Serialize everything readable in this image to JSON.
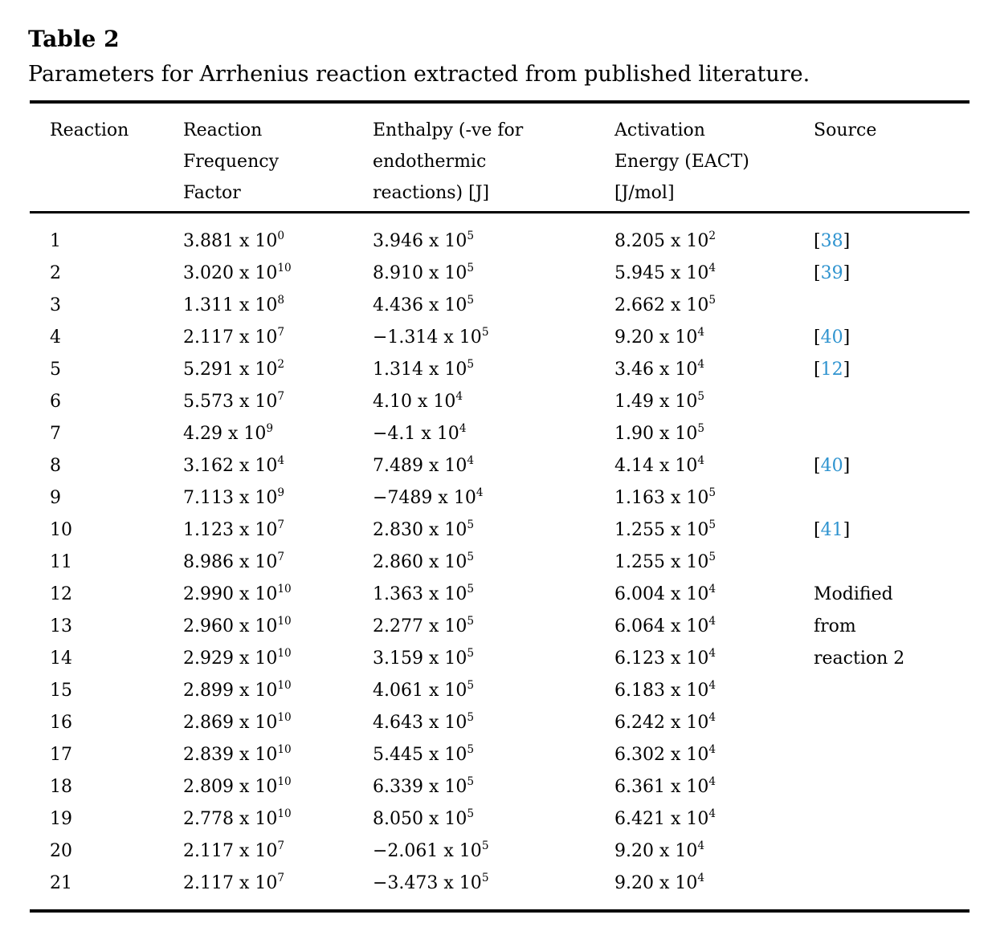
{
  "title": "Table 2",
  "caption": "Parameters for Arrhenius reaction extracted from published literature.",
  "colors": {
    "citation_blue": "#2e93cf",
    "text": "#000000",
    "rule": "#000000",
    "background": "#ffffff"
  },
  "header": {
    "columns": [
      {
        "id": "reaction",
        "lines": [
          "Reaction"
        ]
      },
      {
        "id": "frequency",
        "lines": [
          "Reaction",
          "Frequency",
          "Factor"
        ]
      },
      {
        "id": "enthalpy",
        "lines": [
          "Enthalpy (-ve for",
          "endothermic",
          "reactions) [J]"
        ]
      },
      {
        "id": "activation",
        "lines": [
          "Activation",
          "Energy (EACT)",
          "[J/mol]"
        ]
      },
      {
        "id": "source",
        "lines": [
          "Source"
        ]
      }
    ]
  },
  "rows": [
    {
      "reaction": "1",
      "freq": {
        "m": "3.881 x 10",
        "e": "0"
      },
      "enthalpy": {
        "m": "3.946 x 10",
        "e": "5"
      },
      "eact": {
        "m": "8.205 x 10",
        "e": "2"
      },
      "source": {
        "kind": "citation",
        "num": "38"
      }
    },
    {
      "reaction": "2",
      "freq": {
        "m": "3.020 x 10",
        "e": "10"
      },
      "enthalpy": {
        "m": "8.910 x 10",
        "e": "5"
      },
      "eact": {
        "m": "5.945 x 10",
        "e": "4"
      },
      "source": {
        "kind": "citation",
        "num": "39"
      }
    },
    {
      "reaction": "3",
      "freq": {
        "m": "1.311 x 10",
        "e": "8"
      },
      "enthalpy": {
        "m": "4.436 x 10",
        "e": "5"
      },
      "eact": {
        "m": "2.662 x 10",
        "e": "5"
      },
      "source": {
        "kind": "none"
      }
    },
    {
      "reaction": "4",
      "freq": {
        "m": "2.117 x 10",
        "e": "7"
      },
      "enthalpy": {
        "m": "−1.314 x 10",
        "e": "5"
      },
      "eact": {
        "m": "9.20 x 10",
        "e": "4"
      },
      "source": {
        "kind": "citation",
        "num": "40"
      }
    },
    {
      "reaction": "5",
      "freq": {
        "m": "5.291 x 10",
        "e": "2"
      },
      "enthalpy": {
        "m": "1.314 x 10",
        "e": "5"
      },
      "eact": {
        "m": "3.46 x 10",
        "e": "4"
      },
      "source": {
        "kind": "citation",
        "num": "12"
      }
    },
    {
      "reaction": "6",
      "freq": {
        "m": "5.573 x 10",
        "e": "7"
      },
      "enthalpy": {
        "m": "4.10 x 10",
        "e": "4"
      },
      "eact": {
        "m": "1.49 x 10",
        "e": "5"
      },
      "source": {
        "kind": "none"
      }
    },
    {
      "reaction": "7",
      "freq": {
        "m": "4.29 x 10",
        "e": "9"
      },
      "enthalpy": {
        "m": "−4.1 x 10",
        "e": "4"
      },
      "eact": {
        "m": "1.90 x 10",
        "e": "5"
      },
      "source": {
        "kind": "none"
      }
    },
    {
      "reaction": "8",
      "freq": {
        "m": "3.162 x 10",
        "e": "4"
      },
      "enthalpy": {
        "m": "7.489 x 10",
        "e": "4"
      },
      "eact": {
        "m": "4.14 x 10",
        "e": "4"
      },
      "source": {
        "kind": "citation",
        "num": "40"
      }
    },
    {
      "reaction": "9",
      "freq": {
        "m": "7.113 x 10",
        "e": "9"
      },
      "enthalpy": {
        "m": "−7489 x 10",
        "e": "4"
      },
      "eact": {
        "m": "1.163 x 10",
        "e": "5"
      },
      "source": {
        "kind": "none"
      }
    },
    {
      "reaction": "10",
      "freq": {
        "m": "1.123 x 10",
        "e": "7"
      },
      "enthalpy": {
        "m": "2.830 x 10",
        "e": "5"
      },
      "eact": {
        "m": "1.255 x 10",
        "e": "5"
      },
      "source": {
        "kind": "citation",
        "num": "41"
      }
    },
    {
      "reaction": "11",
      "freq": {
        "m": "8.986 x 10",
        "e": "7"
      },
      "enthalpy": {
        "m": "2.860 x 10",
        "e": "5"
      },
      "eact": {
        "m": "1.255 x 10",
        "e": "5"
      },
      "source": {
        "kind": "none"
      }
    },
    {
      "reaction": "12",
      "freq": {
        "m": "2.990 x 10",
        "e": "10"
      },
      "enthalpy": {
        "m": "1.363 x 10",
        "e": "5"
      },
      "eact": {
        "m": "6.004 x 10",
        "e": "4"
      },
      "source": {
        "kind": "text",
        "text": "Modified"
      }
    },
    {
      "reaction": "13",
      "freq": {
        "m": "2.960 x 10",
        "e": "10"
      },
      "enthalpy": {
        "m": "2.277 x 10",
        "e": "5"
      },
      "eact": {
        "m": "6.064 x 10",
        "e": "4"
      },
      "source": {
        "kind": "text",
        "text": "from"
      }
    },
    {
      "reaction": "14",
      "freq": {
        "m": "2.929 x 10",
        "e": "10"
      },
      "enthalpy": {
        "m": "3.159 x 10",
        "e": "5"
      },
      "eact": {
        "m": "6.123 x 10",
        "e": "4"
      },
      "source": {
        "kind": "text",
        "text": "reaction 2"
      }
    },
    {
      "reaction": "15",
      "freq": {
        "m": "2.899 x 10",
        "e": "10"
      },
      "enthalpy": {
        "m": "4.061 x 10",
        "e": "5"
      },
      "eact": {
        "m": "6.183 x 10",
        "e": "4"
      },
      "source": {
        "kind": "none"
      }
    },
    {
      "reaction": "16",
      "freq": {
        "m": "2.869 x 10",
        "e": "10"
      },
      "enthalpy": {
        "m": "4.643 x 10",
        "e": "5"
      },
      "eact": {
        "m": "6.242 x 10",
        "e": "4"
      },
      "source": {
        "kind": "none"
      }
    },
    {
      "reaction": "17",
      "freq": {
        "m": "2.839 x 10",
        "e": "10"
      },
      "enthalpy": {
        "m": "5.445 x 10",
        "e": "5"
      },
      "eact": {
        "m": "6.302 x 10",
        "e": "4"
      },
      "source": {
        "kind": "none"
      }
    },
    {
      "reaction": "18",
      "freq": {
        "m": "2.809 x 10",
        "e": "10"
      },
      "enthalpy": {
        "m": "6.339 x 10",
        "e": "5"
      },
      "eact": {
        "m": "6.361 x 10",
        "e": "4"
      },
      "source": {
        "kind": "none"
      }
    },
    {
      "reaction": "19",
      "freq": {
        "m": "2.778 x 10",
        "e": "10"
      },
      "enthalpy": {
        "m": "8.050 x 10",
        "e": "5"
      },
      "eact": {
        "m": "6.421 x 10",
        "e": "4"
      },
      "source": {
        "kind": "none"
      }
    },
    {
      "reaction": "20",
      "freq": {
        "m": "2.117 x 10",
        "e": "7"
      },
      "enthalpy": {
        "m": "−2.061 x 10",
        "e": "5"
      },
      "eact": {
        "m": "9.20 x 10",
        "e": "4"
      },
      "source": {
        "kind": "none"
      }
    },
    {
      "reaction": "21",
      "freq": {
        "m": "2.117 x 10",
        "e": "7"
      },
      "enthalpy": {
        "m": "−3.473 x 10",
        "e": "5"
      },
      "eact": {
        "m": "9.20 x 10",
        "e": "4"
      },
      "source": {
        "kind": "none"
      }
    }
  ]
}
